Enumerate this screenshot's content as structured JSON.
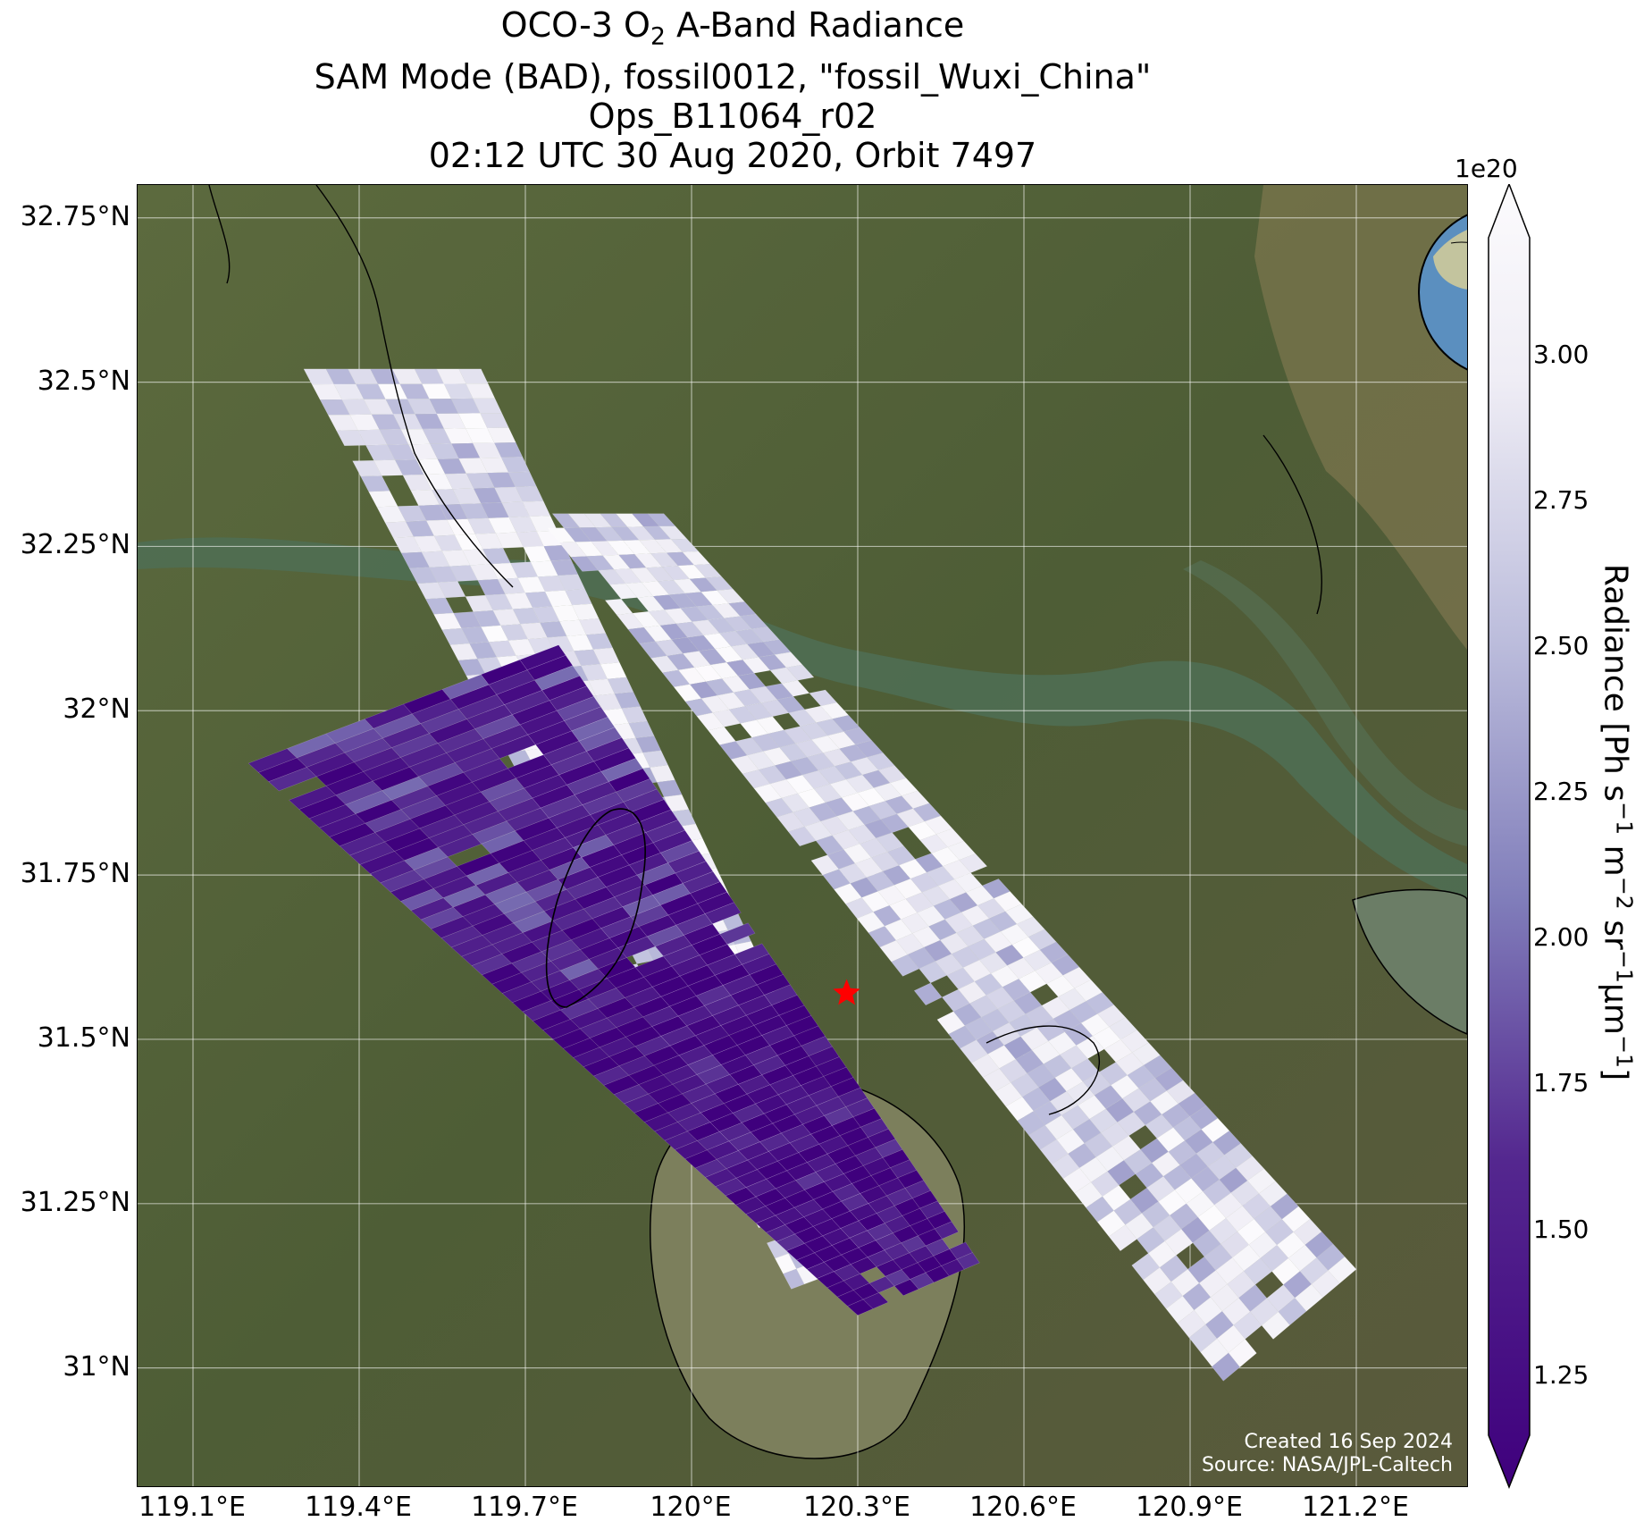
{
  "title": {
    "line1_pre": "OCO-3 O",
    "line1_sub": "2",
    "line1_post": " A-Band Radiance",
    "line2": "SAM Mode (BAD), fossil0012, \"fossil_Wuxi_China\"",
    "line3": "Ops_B11064_r02",
    "line4": "02:12 UTC 30 Aug 2020, Orbit 7497"
  },
  "axes": {
    "lat_ticks": [
      "32.75°N",
      "32.5°N",
      "32.25°N",
      "32°N",
      "31.75°N",
      "31.5°N",
      "31.25°N",
      "31°N"
    ],
    "lon_ticks": [
      "119.1°E",
      "119.4°E",
      "119.7°E",
      "120°E",
      "120.3°E",
      "120.6°E",
      "120.9°E",
      "121.2°E"
    ]
  },
  "colorbar": {
    "exponent": "1e20",
    "ticks": [
      "1.25",
      "1.50",
      "1.75",
      "2.00",
      "2.25",
      "2.50",
      "2.75",
      "3.00"
    ],
    "label_parts": [
      "Radiance [Ph s",
      "−1",
      " m",
      "−2",
      " sr",
      "−1",
      "μm",
      "−1",
      "]"
    ],
    "colors": {
      "low": "#3f007d",
      "mid": "#807dba",
      "high": "#fcfbfd"
    }
  },
  "credit": {
    "created": "Created 16 Sep 2024",
    "source": "Source: NASA/JPL-Caltech"
  },
  "target_marker": {
    "lon": 120.28,
    "lat": 31.57,
    "color": "#ff0000"
  },
  "chart_data": {
    "type": "heatmap",
    "lon_range": [
      119.0,
      121.4
    ],
    "lat_range": [
      30.82,
      32.8
    ],
    "value_range": [
      1.15,
      3.2
    ],
    "value_scale": "1e20",
    "swaths": [
      {
        "corners": [
          [
            119.3,
            32.52
          ],
          [
            120.18,
            31.12
          ],
          [
            120.37,
            31.18
          ],
          [
            119.62,
            32.52
          ]
        ],
        "mean": 2.8
      },
      {
        "corners": [
          [
            119.72,
            32.3
          ],
          [
            120.96,
            30.98
          ],
          [
            121.2,
            31.15
          ],
          [
            119.95,
            32.3
          ]
        ],
        "mean": 2.75
      },
      {
        "corners": [
          [
            119.2,
            31.92
          ],
          [
            120.3,
            31.08
          ],
          [
            120.52,
            31.16
          ],
          [
            119.76,
            32.1
          ]
        ],
        "mean": 1.55
      }
    ]
  }
}
